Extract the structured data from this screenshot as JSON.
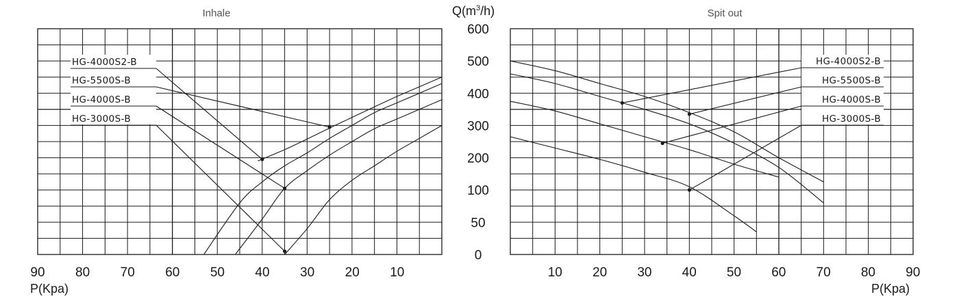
{
  "y_axis": {
    "label": "Q(m",
    "label_sup": "3",
    "label_tail": "/h)",
    "ticks": [
      "600",
      "500",
      "400",
      "300",
      "200",
      "100",
      "50",
      "0"
    ]
  },
  "chart_data": [
    {
      "type": "line",
      "title": "Inhale",
      "xlabel": "P(Kpa)",
      "ylabel": "Q(m³/h)",
      "x_ticks": [
        "90",
        "80",
        "70",
        "60",
        "50",
        "40",
        "30",
        "20",
        "10"
      ],
      "series": [
        {
          "name": "HG-4000S2-B",
          "x": [
            41,
            35,
            30,
            25,
            20,
            15,
            10,
            5,
            0
          ],
          "y": [
            190,
            225,
            258,
            292,
            325,
            358,
            390,
            420,
            450
          ],
          "marker": {
            "x": 40,
            "y": 195
          }
        },
        {
          "name": "HG-5500S-B",
          "x": [
            53,
            45,
            40,
            35,
            30,
            25,
            20,
            15,
            10,
            5,
            0
          ],
          "y": [
            0,
            80,
            125,
            175,
            215,
            260,
            300,
            340,
            370,
            400,
            430
          ],
          "marker": {
            "x": 25,
            "y": 295
          }
        },
        {
          "name": "HG-4000S-B",
          "x": [
            46,
            40,
            35,
            30,
            25,
            20,
            15,
            10,
            5,
            0
          ],
          "y": [
            0,
            55,
            105,
            160,
            208,
            250,
            290,
            320,
            350,
            380
          ],
          "marker": {
            "x": 35,
            "y": 105
          }
        },
        {
          "name": "HG-3000S-B",
          "x": [
            35,
            30,
            25,
            20,
            15,
            10,
            5,
            0
          ],
          "y": [
            0,
            40,
            85,
            130,
            175,
            220,
            260,
            300
          ],
          "marker": {
            "x": 35,
            "y": 5
          }
        }
      ]
    },
    {
      "type": "line",
      "title": "Spit out",
      "xlabel": "P(Kpa)",
      "ylabel": "Q(m³/h)",
      "x_ticks": [
        "10",
        "20",
        "30",
        "40",
        "50",
        "60",
        "70",
        "80",
        "90"
      ],
      "series": [
        {
          "name": "HG-4000S2-B",
          "x": [
            0,
            10,
            20,
            30,
            40,
            50,
            60,
            70
          ],
          "y": [
            500,
            470,
            430,
            390,
            340,
            280,
            200,
            125
          ],
          "marker": {
            "x": 25,
            "y": 370
          }
        },
        {
          "name": "HG-5500S-B",
          "x": [
            0,
            10,
            20,
            30,
            40,
            50,
            60,
            70
          ],
          "y": [
            460,
            430,
            390,
            350,
            305,
            245,
            170,
            80
          ],
          "marker": {
            "x": 40,
            "y": 335
          }
        },
        {
          "name": "HG-4000S-B",
          "x": [
            0,
            10,
            20,
            30,
            40,
            50,
            60
          ],
          "y": [
            375,
            345,
            305,
            265,
            225,
            180,
            140
          ],
          "marker": {
            "x": 34,
            "y": 245
          }
        },
        {
          "name": "HG-3000S-B",
          "x": [
            0,
            10,
            20,
            30,
            40,
            50,
            55
          ],
          "y": [
            265,
            230,
            195,
            155,
            110,
            60,
            35
          ],
          "marker": {
            "x": 40,
            "y": 100
          }
        }
      ]
    }
  ]
}
